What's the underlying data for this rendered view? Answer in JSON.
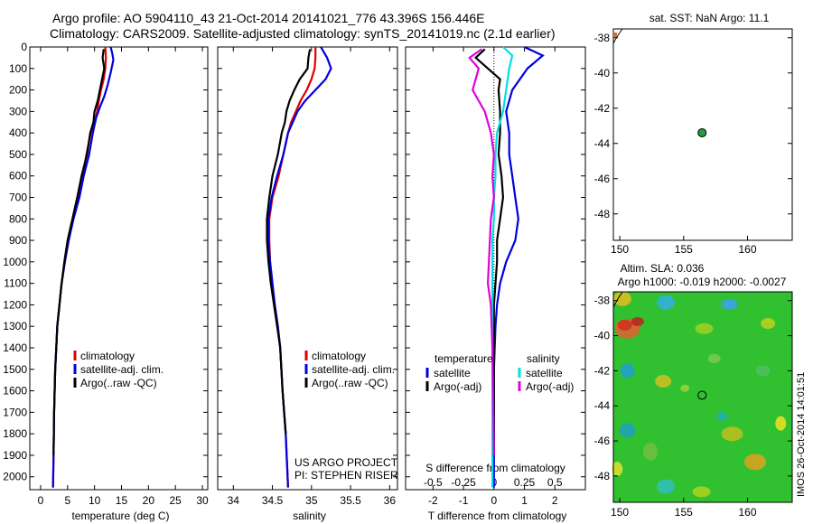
{
  "title_line1": "Argo profile: AO 5904110_43 21-Oct-2014 20141021_776 43.396S 156.446E",
  "title_line2": "Climatology: CARS2009. Satellite-adjusted climatology: synTS_20141019.nc (2.1d earlier)",
  "colors": {
    "climatology": "#e00000",
    "satellite": "#0000e0",
    "argo": "#000000",
    "sal_satellite": "#00e0e0",
    "sal_argo": "#e000e0",
    "float_marker": "#20a040"
  },
  "chart_data": [
    {
      "type": "line",
      "panel": "temperature",
      "xlabel": "temperature (deg C)",
      "ylabel": "",
      "xlim": [
        -2,
        31
      ],
      "ylim": [
        2060,
        0
      ],
      "xticks": [
        "0",
        "5",
        "10",
        "15",
        "20",
        "25",
        "30"
      ],
      "xtick_values": [
        0,
        5,
        10,
        15,
        20,
        25,
        30
      ],
      "yticks": [
        "0",
        "100",
        "200",
        "300",
        "400",
        "500",
        "600",
        "700",
        "800",
        "900",
        "1000",
        "1100",
        "1200",
        "1300",
        "1400",
        "1500",
        "1600",
        "1700",
        "1800",
        "1900",
        "2000"
      ],
      "ytick_values": [
        0,
        100,
        200,
        300,
        400,
        500,
        600,
        700,
        800,
        900,
        1000,
        1100,
        1200,
        1300,
        1400,
        1500,
        1600,
        1700,
        1800,
        1900,
        2000
      ],
      "legend": [
        "climatology",
        "satellite-adj. clim.",
        "Argo(..raw -QC)"
      ],
      "series": [
        {
          "name": "climatology",
          "color": "#e00000",
          "x": [
            12.0,
            12.1,
            12.0,
            11.7,
            11.2,
            10.8,
            10.5,
            10.0,
            9.3,
            8.5,
            7.8,
            7.0,
            6.0,
            5.2,
            4.5,
            3.9,
            3.5,
            3.1,
            2.9,
            2.7,
            2.5,
            2.4,
            2.3
          ],
          "y": [
            0,
            50,
            100,
            150,
            200,
            250,
            300,
            350,
            400,
            500,
            600,
            700,
            800,
            900,
            1000,
            1100,
            1200,
            1300,
            1400,
            1500,
            1700,
            1900,
            2050
          ]
        },
        {
          "name": "satellite-adj. clim.",
          "color": "#0000e0",
          "x": [
            13.0,
            13.3,
            13.5,
            13.0,
            12.4,
            11.8,
            11.0,
            10.3,
            9.7,
            9.0,
            8.0,
            7.2,
            6.1,
            5.2,
            4.5,
            3.9,
            3.5,
            3.1,
            2.9,
            2.7,
            2.5,
            2.4,
            2.3
          ],
          "y": [
            0,
            30,
            60,
            120,
            180,
            230,
            280,
            330,
            400,
            500,
            600,
            700,
            800,
            900,
            1000,
            1100,
            1200,
            1300,
            1400,
            1500,
            1700,
            1900,
            2050
          ]
        },
        {
          "name": "Argo(..raw -QC)",
          "color": "#000000",
          "x": [
            11.7,
            11.5,
            11.8,
            11.4,
            11.0,
            10.6,
            10.0,
            9.8,
            9.2,
            8.6,
            7.6,
            6.8,
            5.9,
            5.0,
            4.4,
            3.9,
            3.5,
            3.1,
            2.9,
            2.7,
            2.5,
            2.4
          ],
          "y": [
            10,
            50,
            100,
            150,
            200,
            250,
            300,
            350,
            400,
            500,
            600,
            700,
            800,
            900,
            1000,
            1100,
            1200,
            1300,
            1400,
            1500,
            1700,
            1900
          ]
        }
      ]
    },
    {
      "type": "line",
      "panel": "salinity",
      "xlabel": "salinity",
      "ylabel": "",
      "xlim": [
        33.8,
        36.1
      ],
      "ylim": [
        2060,
        0
      ],
      "xticks": [
        "34",
        "34.5",
        "35",
        "35.5",
        "36"
      ],
      "xtick_values": [
        34,
        34.5,
        35,
        35.5,
        36
      ],
      "legend": [
        "climatology",
        "satellite-adj. clim.",
        "Argo(..raw -QC)"
      ],
      "annotations": [
        "US ARGO PROJECT",
        "PI: STEPHEN RISER"
      ],
      "series": [
        {
          "name": "climatology",
          "color": "#e00000",
          "x": [
            35.05,
            35.05,
            35.04,
            35.0,
            34.94,
            34.86,
            34.8,
            34.74,
            34.7,
            34.64,
            34.58,
            34.5,
            34.46,
            34.46,
            34.47,
            34.5,
            34.53,
            34.57,
            34.6,
            34.63,
            34.67,
            34.7
          ],
          "y": [
            0,
            50,
            100,
            150,
            200,
            250,
            300,
            350,
            400,
            500,
            600,
            700,
            800,
            900,
            1000,
            1100,
            1200,
            1300,
            1400,
            1600,
            1800,
            2050
          ]
        },
        {
          "name": "satellite-adj. clim.",
          "color": "#0000e0",
          "x": [
            35.12,
            35.2,
            35.25,
            35.18,
            35.05,
            34.92,
            34.82,
            34.76,
            34.7,
            34.64,
            34.56,
            34.49,
            34.45,
            34.45,
            34.47,
            34.5,
            34.53,
            34.57,
            34.6,
            34.63,
            34.67,
            34.7
          ],
          "y": [
            0,
            50,
            100,
            150,
            200,
            250,
            300,
            350,
            400,
            500,
            600,
            700,
            800,
            900,
            1000,
            1100,
            1200,
            1300,
            1400,
            1600,
            1800,
            2050
          ]
        },
        {
          "name": "Argo(..raw -QC)",
          "color": "#000000",
          "x": [
            34.98,
            34.96,
            34.95,
            34.85,
            34.78,
            34.72,
            34.68,
            34.66,
            34.62,
            34.57,
            34.5,
            34.46,
            34.43,
            34.43,
            34.45,
            34.48,
            34.52,
            34.56,
            34.6,
            34.63,
            34.67
          ],
          "y": [
            10,
            50,
            100,
            150,
            200,
            250,
            300,
            350,
            400,
            500,
            600,
            700,
            800,
            900,
            1000,
            1100,
            1200,
            1300,
            1400,
            1600,
            1800
          ]
        }
      ]
    },
    {
      "type": "line",
      "panel": "difference",
      "xlabel": "T difference from climatology",
      "secondary_xlabel": "S difference from climatology",
      "xlim": [
        -2.9,
        3.0
      ],
      "ylim": [
        2060,
        0
      ],
      "xticks": [
        "-2",
        "-1",
        "0",
        "1",
        "2"
      ],
      "xtick_values": [
        -2,
        -1,
        0,
        1,
        2
      ],
      "secondary_xticks": [
        "-0.5",
        "-0.25",
        "0",
        "0.25",
        "0.5"
      ],
      "secondary_xtick_values": [
        -0.5,
        -0.25,
        0,
        0.25,
        0.5
      ],
      "legend_headers": [
        "temperature",
        "salinity"
      ],
      "legend": [
        "satellite",
        "Argo(-adj)",
        "satellite",
        "Argo(-adj)"
      ],
      "series": [
        {
          "name": "satellite",
          "group": "temperature",
          "color": "#0000e0",
          "x": [
            1.0,
            1.6,
            1.1,
            0.6,
            0.4,
            0.5,
            0.5,
            0.6,
            0.7,
            0.8,
            0.7,
            0.4,
            0.2,
            0.1,
            0.05,
            0.0,
            0.0,
            0.0,
            0.0
          ],
          "y": [
            0,
            40,
            100,
            200,
            300,
            400,
            500,
            600,
            700,
            800,
            900,
            1000,
            1100,
            1200,
            1300,
            1500,
            1700,
            1900,
            2050
          ]
        },
        {
          "name": "Argo(-adj)",
          "group": "temperature",
          "color": "#000000",
          "x": [
            -0.3,
            -0.6,
            -0.2,
            0.2,
            0.15,
            0.2,
            0.2,
            0.15,
            0.25,
            0.3,
            0.2,
            0.1,
            0.1,
            0.05,
            0.0,
            0.0,
            0.0,
            0.0
          ],
          "y": [
            10,
            50,
            100,
            150,
            200,
            300,
            400,
            500,
            600,
            700,
            800,
            900,
            1000,
            1100,
            1200,
            1400,
            1600,
            1900
          ]
        },
        {
          "name": "satellite",
          "group": "salinity",
          "color": "#00e0e0",
          "x": [
            0.3,
            0.6,
            0.5,
            0.4,
            0.3,
            0.1,
            0.05,
            0.05,
            0.0,
            0.0,
            -0.05,
            -0.05,
            -0.05,
            -0.05,
            -0.05
          ],
          "y": [
            0,
            40,
            100,
            200,
            300,
            400,
            500,
            600,
            700,
            800,
            900,
            1100,
            1300,
            1600,
            2050
          ]
        },
        {
          "name": "Argo(-adj)",
          "group": "salinity",
          "color": "#e000e0",
          "x": [
            -0.4,
            -0.8,
            -0.5,
            -0.6,
            -0.7,
            -0.5,
            -0.3,
            -0.1,
            0.0,
            -0.05,
            0.0,
            -0.1,
            -0.2,
            -0.1,
            -0.05,
            0.0
          ],
          "y": [
            10,
            50,
            100,
            150,
            200,
            250,
            300,
            400,
            500,
            600,
            700,
            800,
            1100,
            1200,
            1400,
            1900
          ]
        }
      ]
    },
    {
      "type": "scatter",
      "panel": "sst_map",
      "title": "sat. SST: NaN Argo: 11.1",
      "xlim": [
        149.5,
        163.5
      ],
      "ylim": [
        -49.5,
        -37.5
      ],
      "xticks": [
        "150",
        "155",
        "160"
      ],
      "xtick_values": [
        150,
        155,
        160
      ],
      "yticks": [
        "-38",
        "-40",
        "-42",
        "-44",
        "-46",
        "-48"
      ],
      "ytick_values": [
        -38,
        -40,
        -42,
        -44,
        -46,
        -48
      ],
      "points": [
        {
          "x": 156.446,
          "y": -43.396
        }
      ]
    },
    {
      "type": "heatmap",
      "panel": "sla_map",
      "title_line1": "Altim. SLA: 0.036",
      "title_line2": "Argo h1000: -0.019 h2000: -0.0027",
      "side_label": "IMOS 26-Oct-2014 14:01:51",
      "xlim": [
        149.5,
        163.5
      ],
      "ylim": [
        -49.5,
        -37.5
      ],
      "xticks": [
        "150",
        "155",
        "160"
      ],
      "xtick_values": [
        150,
        155,
        160
      ],
      "yticks": [
        "-38",
        "-40",
        "-42",
        "-44",
        "-46",
        "-48"
      ],
      "ytick_values": [
        -38,
        -40,
        -42,
        -44,
        -46,
        -48
      ],
      "points": [
        {
          "x": 156.446,
          "y": -43.396
        }
      ]
    }
  ]
}
